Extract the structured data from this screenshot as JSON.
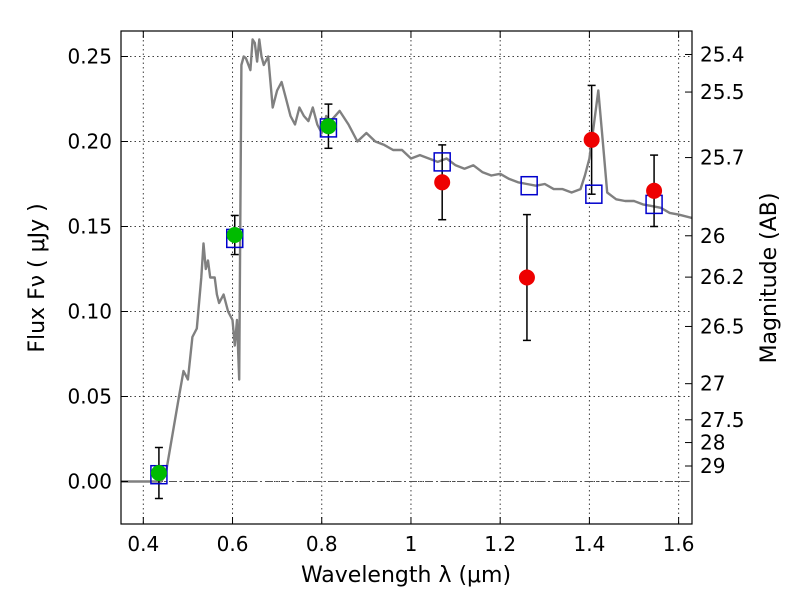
{
  "chart_data": {
    "type": "scatter",
    "title": "",
    "xlabel": "Wavelength  λ (μm)",
    "ylabel": "Flux  Fν  ( μJy )",
    "y2label": "Magnitude (AB)",
    "xlim": [
      0.35,
      1.63
    ],
    "ylim": [
      -0.025,
      0.265
    ],
    "xticks": [
      "0.4",
      "0.6",
      "0.8",
      "1",
      "1.2",
      "1.4",
      "1.6"
    ],
    "yticks": [
      "0.00",
      "0.05",
      "0.10",
      "0.15",
      "0.20",
      "0.25"
    ],
    "y2ticks": [
      "25.4",
      "25.5",
      "25.7",
      "26",
      "26.2",
      "26.5",
      "27",
      "27.5",
      "28",
      "29"
    ],
    "grid": true,
    "model_spectrum": {
      "color": "#808080",
      "x": [
        0.35,
        0.44,
        0.45,
        0.48,
        0.49,
        0.5,
        0.51,
        0.52,
        0.53,
        0.535,
        0.54,
        0.545,
        0.55,
        0.56,
        0.565,
        0.57,
        0.58,
        0.59,
        0.6,
        0.605,
        0.61,
        0.615,
        0.62,
        0.625,
        0.63,
        0.64,
        0.645,
        0.65,
        0.655,
        0.66,
        0.665,
        0.67,
        0.68,
        0.69,
        0.7,
        0.71,
        0.72,
        0.73,
        0.74,
        0.75,
        0.76,
        0.77,
        0.78,
        0.79,
        0.8,
        0.81,
        0.82,
        0.84,
        0.86,
        0.88,
        0.9,
        0.92,
        0.94,
        0.96,
        0.98,
        1.0,
        1.02,
        1.04,
        1.06,
        1.08,
        1.1,
        1.12,
        1.14,
        1.16,
        1.18,
        1.2,
        1.22,
        1.24,
        1.26,
        1.28,
        1.3,
        1.32,
        1.34,
        1.36,
        1.38,
        1.39,
        1.4,
        1.41,
        1.42,
        1.43,
        1.44,
        1.45,
        1.46,
        1.48,
        1.5,
        1.52,
        1.54,
        1.56,
        1.58,
        1.6,
        1.63
      ],
      "y": [
        0.0,
        0.0,
        0.004,
        0.05,
        0.065,
        0.06,
        0.085,
        0.09,
        0.12,
        0.14,
        0.125,
        0.13,
        0.12,
        0.12,
        0.11,
        0.105,
        0.11,
        0.1,
        0.095,
        0.08,
        0.095,
        0.06,
        0.245,
        0.25,
        0.249,
        0.242,
        0.26,
        0.258,
        0.247,
        0.26,
        0.25,
        0.245,
        0.25,
        0.22,
        0.23,
        0.235,
        0.225,
        0.215,
        0.21,
        0.22,
        0.215,
        0.212,
        0.22,
        0.21,
        0.205,
        0.215,
        0.212,
        0.218,
        0.21,
        0.2,
        0.205,
        0.2,
        0.198,
        0.195,
        0.195,
        0.19,
        0.192,
        0.19,
        0.188,
        0.19,
        0.186,
        0.184,
        0.186,
        0.182,
        0.18,
        0.181,
        0.178,
        0.176,
        0.175,
        0.174,
        0.175,
        0.172,
        0.172,
        0.17,
        0.172,
        0.18,
        0.19,
        0.21,
        0.23,
        0.2,
        0.17,
        0.168,
        0.166,
        0.165,
        0.165,
        0.163,
        0.162,
        0.161,
        0.158,
        0.157,
        0.155
      ]
    },
    "series": [
      {
        "marker": "open-square",
        "color": "#0000cc",
        "x": [
          0.435,
          0.605,
          0.815,
          1.07,
          1.265,
          1.41,
          1.545
        ],
        "y": [
          0.004,
          0.143,
          0.208,
          0.188,
          0.174,
          0.169,
          0.163
        ]
      },
      {
        "marker": "circle",
        "color": "#00bb00",
        "x": [
          0.435,
          0.605,
          0.815
        ],
        "y": [
          0.005,
          0.145,
          0.209
        ],
        "yerr": [
          0.015,
          0.0115,
          0.013
        ]
      },
      {
        "marker": "circle",
        "color": "#ee0000",
        "x": [
          1.07,
          1.26,
          1.405,
          1.545
        ],
        "y": [
          0.176,
          0.12,
          0.201,
          0.171
        ],
        "yerr": [
          0.022,
          0.037,
          0.032,
          0.021
        ]
      }
    ],
    "zero_line": {
      "y": 0.0
    }
  }
}
